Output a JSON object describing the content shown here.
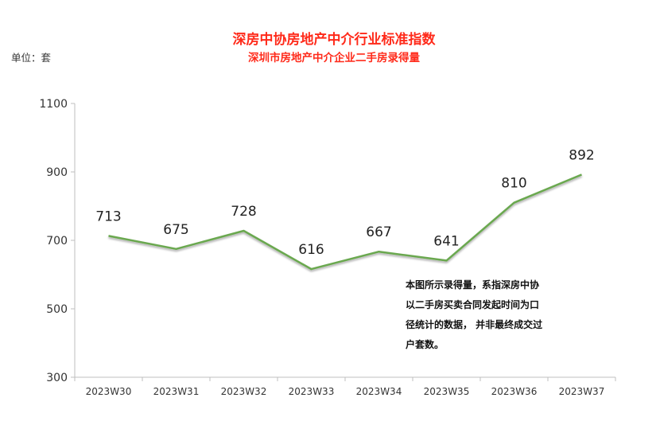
{
  "chart_data": {
    "type": "line",
    "title": "深房中协房地产中介行业标准指数",
    "subtitle": "深圳市房地产中介企业二手房录得量",
    "unit_label": "单位：套",
    "categories": [
      "2023W30",
      "2023W31",
      "2023W32",
      "2023W33",
      "2023W34",
      "2023W35",
      "2023W36",
      "2023W37"
    ],
    "series": [
      {
        "values": [
          713,
          675,
          728,
          616,
          667,
          641,
          810,
          892
        ]
      }
    ],
    "ylim": [
      300,
      1100
    ],
    "yticks": [
      300,
      500,
      700,
      900,
      1100
    ],
    "line_color": "#6aa84f",
    "grid": false,
    "note_lines": [
      "本图所示录得量，系指深房中协",
      "以二手房买卖合同发起时间为口",
      "径统计的数据， 并非最终成交过",
      "户套数。"
    ]
  }
}
